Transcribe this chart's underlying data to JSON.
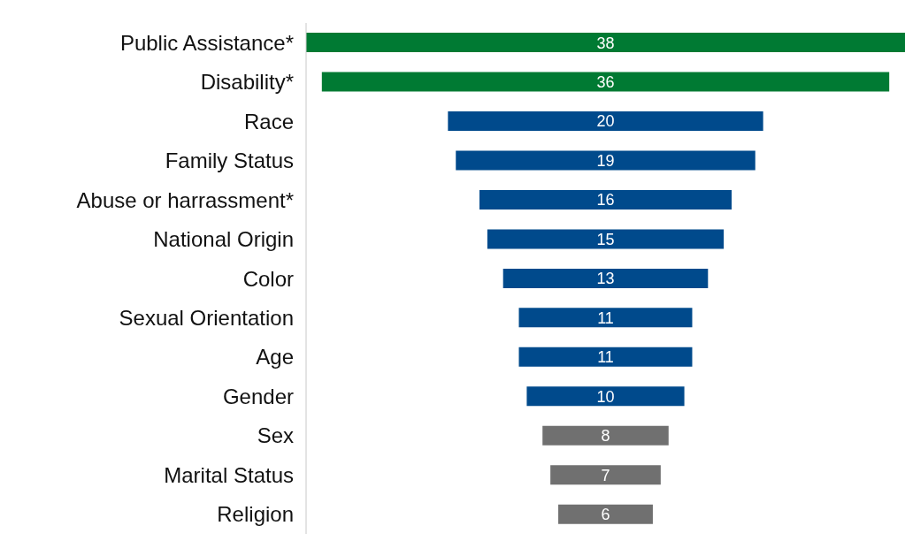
{
  "chart_data": {
    "type": "other",
    "categories": [
      "Public Assistance*",
      "Disability*",
      "Race",
      "Family Status",
      "Abuse or harrassment*",
      "National Origin",
      "Color",
      "Sexual Orientation",
      "Age",
      "Gender",
      "Sex",
      "Marital Status",
      "Religion"
    ],
    "values": [
      38,
      36,
      20,
      19,
      16,
      15,
      13,
      11,
      11,
      10,
      8,
      7,
      6
    ],
    "colors": [
      "#007a33",
      "#007a33",
      "#004a8c",
      "#004a8c",
      "#004a8c",
      "#004a8c",
      "#004a8c",
      "#004a8c",
      "#004a8c",
      "#004a8c",
      "#707070",
      "#707070",
      "#707070"
    ],
    "data_labels": true
  }
}
